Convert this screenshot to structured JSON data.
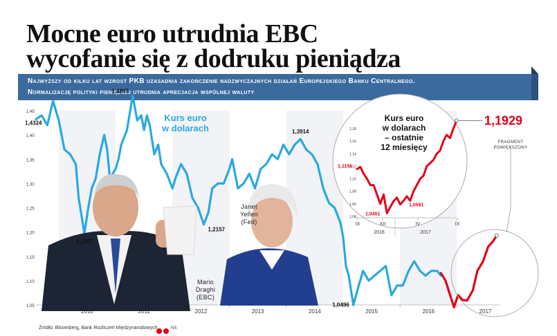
{
  "header": {
    "title_line1": "Mocne euro utrudnia EBC",
    "title_line2": "wycofanie się z dodruku pieniądza"
  },
  "banner": {
    "line1": "Najwyższy od kilku lat wzrost PKB uzasadnia zakończenie nadzwyczajnych działań Europejskiego Banku Centralnego.",
    "line2": "Normalizację polityki pieniężnej utrudnia aprecjacja wspólnej waluty"
  },
  "colors": {
    "banner_bg": "#3b6a9e",
    "main_line": "#2aa8e0",
    "highlight_line": "#e2001a",
    "axis_text": "#333333",
    "circle": "#aaaaaa"
  },
  "chart_data": [
    {
      "type": "line",
      "title": "Kurs euro w dolarach",
      "x_ticks": [
        "2010",
        "2011",
        "2012",
        "2013",
        "2014",
        "2015",
        "2016",
        "2017"
      ],
      "y_ticks": [
        "1,45",
        "1,40",
        "1,35",
        "1,30",
        "1,25",
        "1,20",
        "1,15",
        "1,10",
        "1,05"
      ],
      "ylim": [
        1.05,
        1.45
      ],
      "xlim": [
        2009.6,
        2017.75
      ],
      "series": [
        {
          "points": [
            [
              2009.6,
              1.4324
            ],
            [
              2009.7,
              1.44
            ],
            [
              2009.8,
              1.42
            ],
            [
              2009.9,
              1.47
            ],
            [
              2010.0,
              1.43
            ],
            [
              2010.1,
              1.37
            ],
            [
              2010.2,
              1.36
            ],
            [
              2010.3,
              1.34
            ],
            [
              2010.35,
              1.27
            ],
            [
              2010.42,
              1.22
            ],
            [
              2010.45,
              1.1967
            ],
            [
              2010.52,
              1.25
            ],
            [
              2010.58,
              1.29
            ],
            [
              2010.65,
              1.31
            ],
            [
              2010.72,
              1.36
            ],
            [
              2010.8,
              1.4
            ],
            [
              2010.85,
              1.37
            ],
            [
              2010.9,
              1.31
            ],
            [
              2011.0,
              1.33
            ],
            [
              2011.05,
              1.35
            ],
            [
              2011.1,
              1.38
            ],
            [
              2011.2,
              1.41
            ],
            [
              2011.3,
              1.4807
            ],
            [
              2011.38,
              1.43
            ],
            [
              2011.45,
              1.44
            ],
            [
              2011.5,
              1.41
            ],
            [
              2011.55,
              1.44
            ],
            [
              2011.6,
              1.42
            ],
            [
              2011.68,
              1.36
            ],
            [
              2011.75,
              1.38
            ],
            [
              2011.8,
              1.34
            ],
            [
              2011.9,
              1.32
            ],
            [
              2012.0,
              1.29
            ],
            [
              2012.05,
              1.31
            ],
            [
              2012.15,
              1.34
            ],
            [
              2012.25,
              1.32
            ],
            [
              2012.35,
              1.27
            ],
            [
              2012.45,
              1.25
            ],
            [
              2012.55,
              1.2157
            ],
            [
              2012.63,
              1.24
            ],
            [
              2012.7,
              1.29
            ],
            [
              2012.8,
              1.3
            ],
            [
              2012.9,
              1.3
            ],
            [
              2013.0,
              1.33
            ],
            [
              2013.05,
              1.35
            ],
            [
              2013.15,
              1.29
            ],
            [
              2013.25,
              1.3
            ],
            [
              2013.35,
              1.32
            ],
            [
              2013.45,
              1.29
            ],
            [
              2013.55,
              1.33
            ],
            [
              2013.65,
              1.34
            ],
            [
              2013.75,
              1.36
            ],
            [
              2013.85,
              1.35
            ],
            [
              2013.95,
              1.38
            ],
            [
              2014.05,
              1.36
            ],
            [
              2014.15,
              1.38
            ],
            [
              2014.25,
              1.3914
            ],
            [
              2014.35,
              1.37
            ],
            [
              2014.45,
              1.36
            ],
            [
              2014.55,
              1.34
            ],
            [
              2014.65,
              1.29
            ],
            [
              2014.75,
              1.26
            ],
            [
              2014.85,
              1.25
            ],
            [
              2014.95,
              1.22
            ],
            [
              2015.0,
              1.19
            ],
            [
              2015.05,
              1.13
            ],
            [
              2015.1,
              1.11
            ],
            [
              2015.18,
              1.0496
            ],
            [
              2015.25,
              1.08
            ],
            [
              2015.35,
              1.12
            ],
            [
              2015.45,
              1.1
            ],
            [
              2015.55,
              1.11
            ],
            [
              2015.65,
              1.12
            ],
            [
              2015.75,
              1.13
            ],
            [
              2015.85,
              1.07
            ],
            [
              2015.95,
              1.09
            ],
            [
              2016.05,
              1.09
            ],
            [
              2016.15,
              1.12
            ],
            [
              2016.25,
              1.14
            ],
            [
              2016.35,
              1.12
            ],
            [
              2016.45,
              1.11
            ],
            [
              2016.55,
              1.12
            ],
            [
              2016.65,
              1.12
            ],
            [
              2016.72,
              1.11
            ]
          ]
        },
        {
          "points": [
            [
              2016.72,
              1.1156
            ],
            [
              2016.8,
              1.1
            ],
            [
              2016.88,
              1.07
            ],
            [
              2016.95,
              1.0451
            ],
            [
              2017.02,
              1.07
            ],
            [
              2017.1,
              1.06
            ],
            [
              2017.18,
              1.0591
            ],
            [
              2017.28,
              1.08
            ],
            [
              2017.36,
              1.12
            ],
            [
              2017.46,
              1.14
            ],
            [
              2017.55,
              1.17
            ],
            [
              2017.63,
              1.18
            ],
            [
              2017.7,
              1.1929
            ]
          ]
        }
      ],
      "annotations": [
        "1,4324",
        "1,1967",
        "1,4807",
        "1,2157",
        "1,3914",
        "1,0496"
      ],
      "people": [
        {
          "line1": "Mario",
          "line2": "Draghi",
          "line3": "(EBC)"
        },
        {
          "line1": "Janet",
          "line2": "Yellen",
          "line3": "(Fed)"
        }
      ]
    },
    {
      "type": "line",
      "title": "Kurs euro w dolarach – ostatnie 12 miesięcy",
      "title_lines": [
        "Kurs euro",
        "w dolarach",
        "– ostatnie",
        "12 miesięcy"
      ],
      "y_ticks": [
        "1,18",
        "1,16",
        "1,14",
        "1,12",
        "1,10",
        "1,08",
        "1,06",
        "1,04"
      ],
      "ylim": [
        1.04,
        1.19
      ],
      "x_ticks": [
        "IX",
        "XII",
        "IV",
        "IX"
      ],
      "year_labels": [
        "2016",
        "2017"
      ],
      "series": [
        {
          "values": [
            1.1156,
            1.119,
            1.108,
            1.1,
            1.09,
            1.09,
            1.075,
            1.06,
            1.075,
            1.0451,
            1.055,
            1.064,
            1.07,
            1.0591,
            1.065,
            1.072,
            1.065,
            1.08,
            1.09,
            1.1,
            1.105,
            1.12,
            1.125,
            1.13,
            1.14,
            1.145,
            1.16,
            1.17,
            1.165,
            1.18,
            1.1929
          ]
        }
      ],
      "annotations": [
        "1,1156",
        "1,0451",
        "1,0591"
      ],
      "last_value": "1,1929",
      "zoom_note_line1": "fragment",
      "zoom_note_line2": "powiększony"
    }
  ],
  "footer": {
    "source": "Źródło: Bloomberg, Bank Rozliczeń Międzynarodowych",
    "signature": "NS"
  }
}
